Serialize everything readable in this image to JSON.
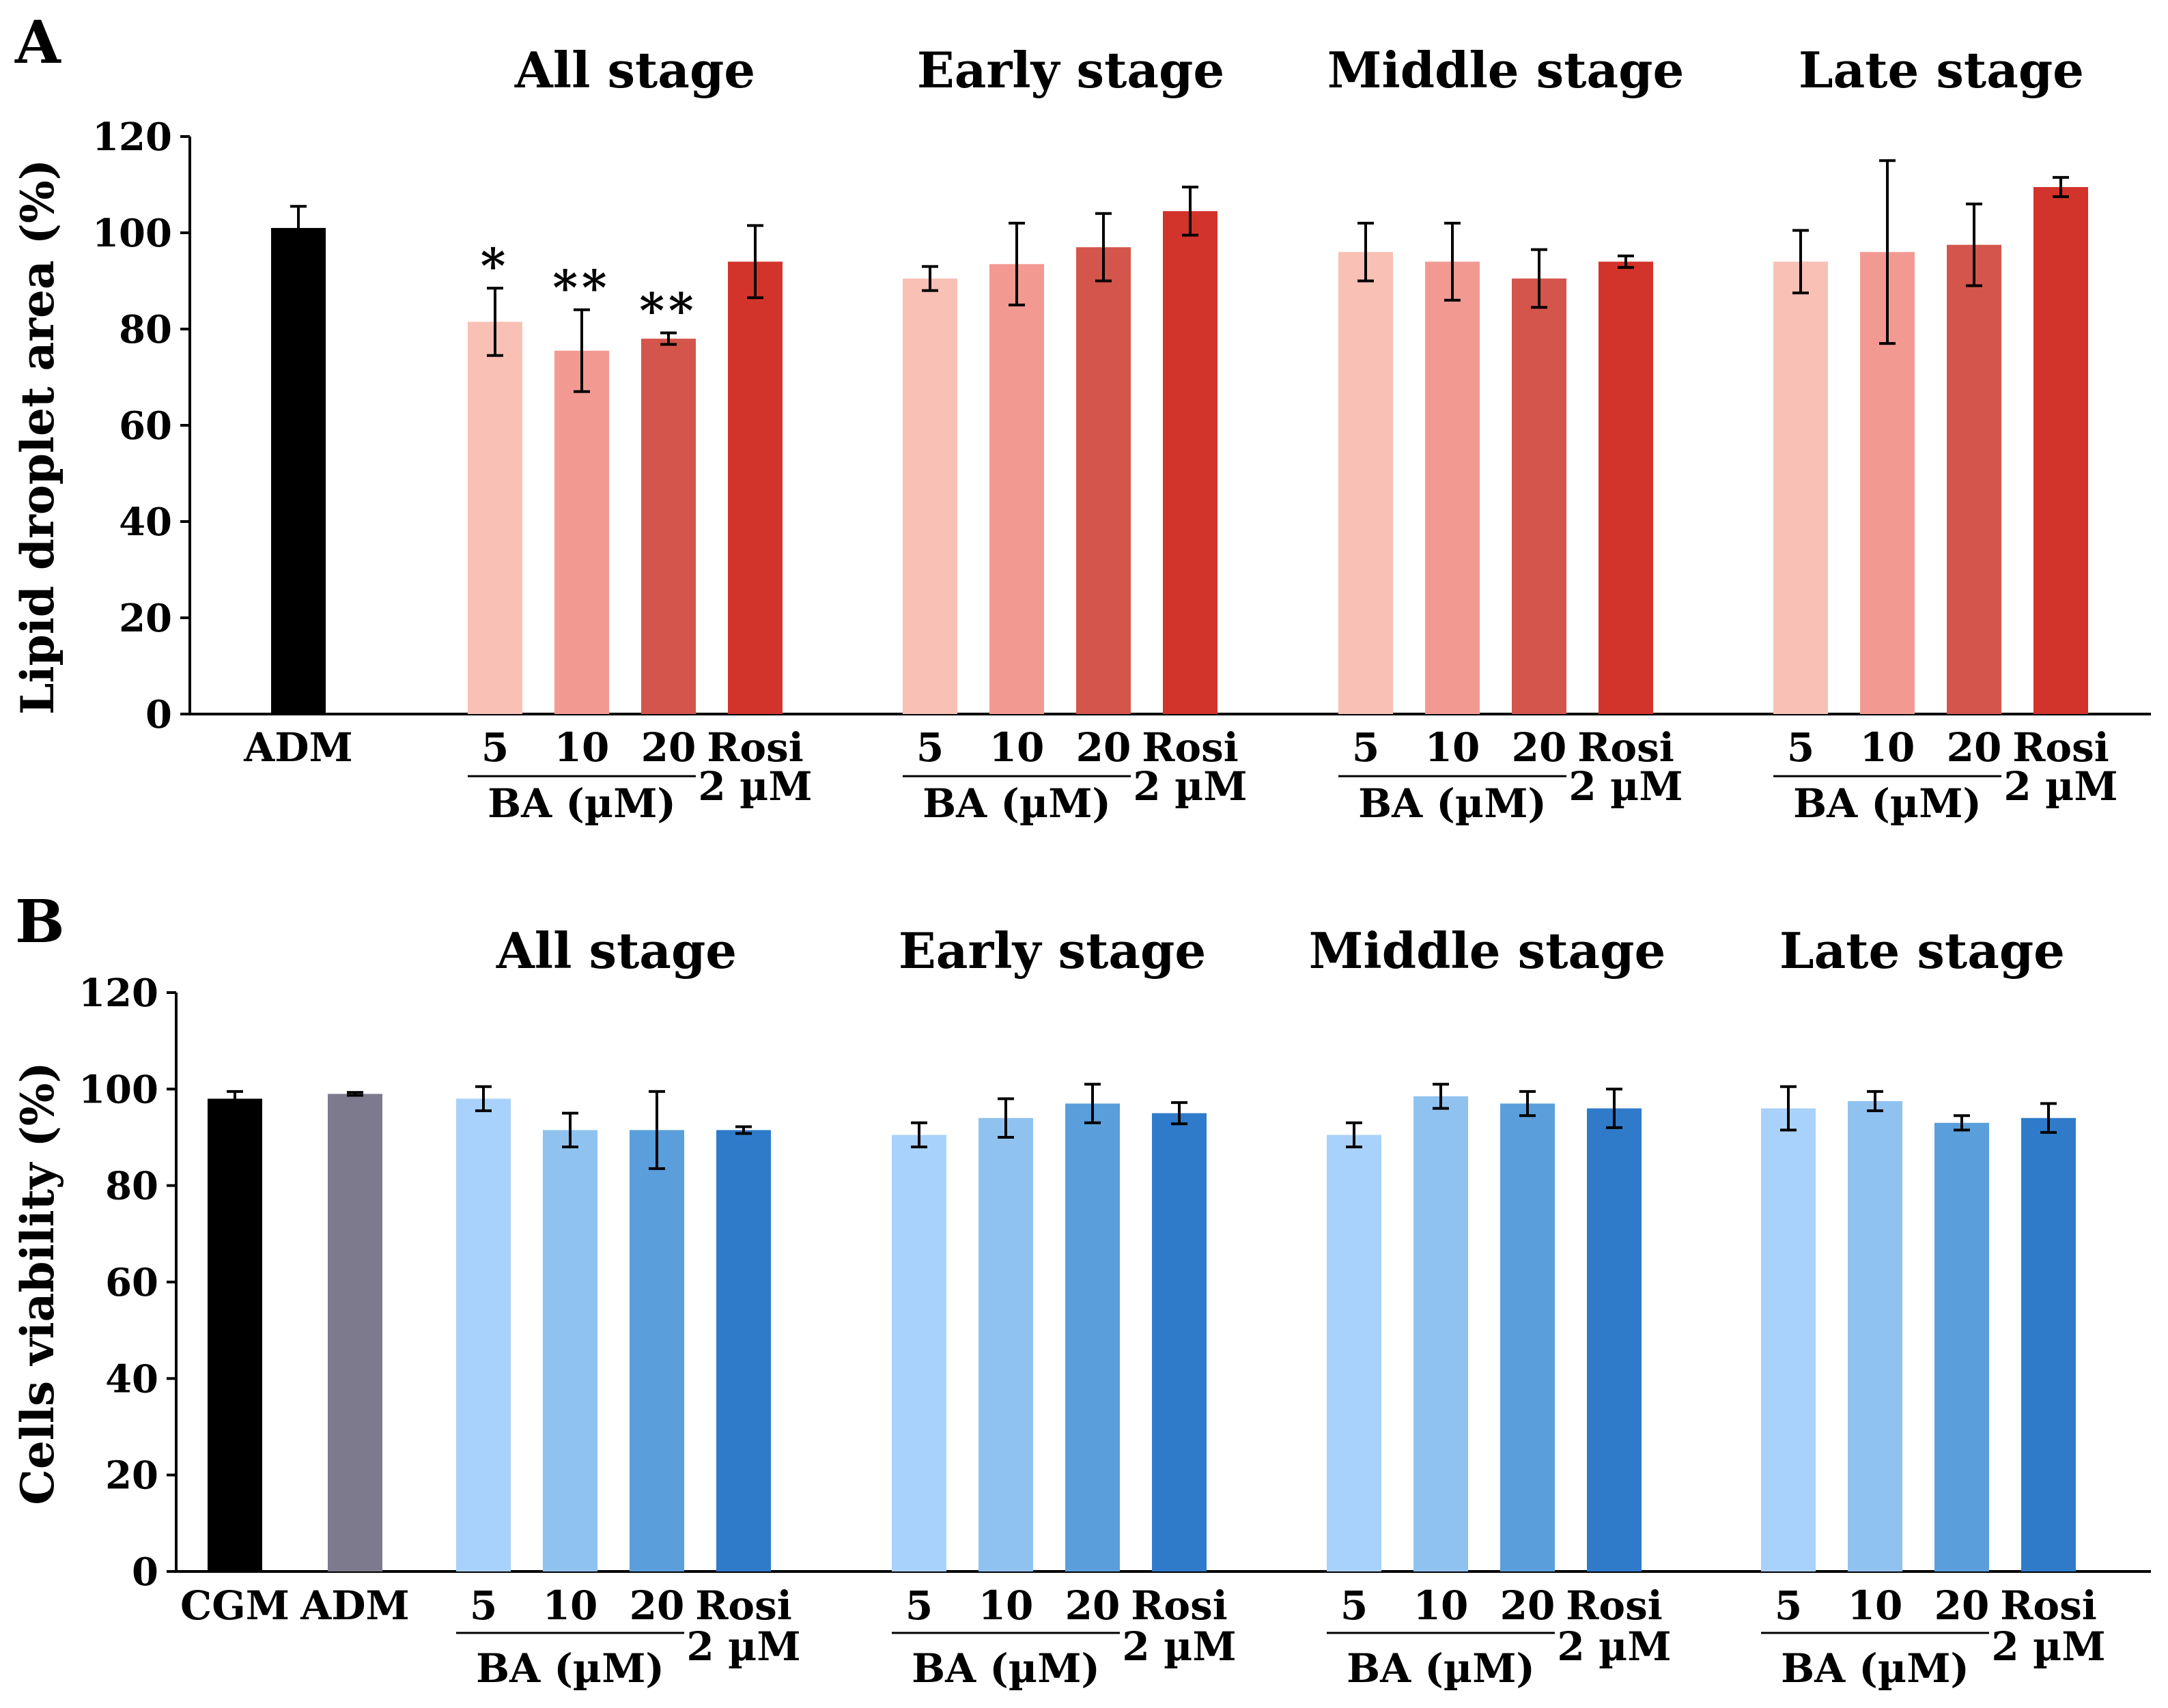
{
  "colors": {
    "red_5": "#f9c0b5",
    "red_10": "#f29a92",
    "red_20": "#d4554b",
    "red_rosi": "#d2332b",
    "blue_5": "#a8d2fb",
    "blue_10": "#90c2f0",
    "blue_20": "#5a9fdb",
    "blue_rosi": "#2f7bca",
    "black": "#000000",
    "gray": "#7d7a8e"
  },
  "stage_labels": [
    "All stage",
    "Early stage",
    "Middle stage",
    "Late stage"
  ],
  "dose_labels": [
    "5",
    "10",
    "20"
  ],
  "rosi_label": [
    "Rosi",
    "2 µM"
  ],
  "group_caption": "BA (µM)",
  "chart_data": [
    {
      "panel": "A",
      "type": "bar",
      "ylabel": "Lipid droplet area (%)",
      "ylim": [
        0,
        120
      ],
      "yticks": [
        0,
        20,
        40,
        60,
        80,
        100,
        120
      ],
      "controls": [
        {
          "label": "ADM",
          "value": 101,
          "error": 4.5,
          "color": "#000000"
        }
      ],
      "groups": [
        {
          "stage": "All stage",
          "values": [
            81.5,
            75.5,
            78,
            94
          ],
          "errors": [
            7,
            8.5,
            1.2,
            7.5
          ],
          "significance": [
            "*",
            "**",
            "**",
            ""
          ]
        },
        {
          "stage": "Early stage",
          "values": [
            90.5,
            93.5,
            97,
            104.5
          ],
          "errors": [
            2.5,
            8.5,
            7,
            5
          ],
          "significance": [
            "",
            "",
            "",
            ""
          ]
        },
        {
          "stage": "Middle stage",
          "values": [
            96,
            94,
            90.5,
            94
          ],
          "errors": [
            6,
            8,
            6,
            1.2
          ],
          "significance": [
            "",
            "",
            "",
            ""
          ]
        },
        {
          "stage": "Late stage",
          "values": [
            94,
            96,
            97.5,
            109.5
          ],
          "errors": [
            6.5,
            19,
            8.5,
            2
          ],
          "significance": [
            "",
            "",
            "",
            ""
          ]
        }
      ],
      "bar_colors": [
        "#f9c0b5",
        "#f29a92",
        "#d4554b",
        "#d2332b"
      ]
    },
    {
      "panel": "B",
      "type": "bar",
      "ylabel": "Cells viability (%)",
      "ylim": [
        0,
        120
      ],
      "yticks": [
        0,
        20,
        40,
        60,
        80,
        100,
        120
      ],
      "controls": [
        {
          "label": "CGM",
          "value": 98,
          "error": 1.5,
          "color": "#000000"
        },
        {
          "label": "ADM",
          "value": 99,
          "error": 0.3,
          "color": "#7d7a8e"
        }
      ],
      "groups": [
        {
          "stage": "All stage",
          "values": [
            98,
            91.5,
            91.5,
            91.5
          ],
          "errors": [
            2.5,
            3.5,
            8,
            0.7
          ],
          "significance": [
            "",
            "",
            "",
            ""
          ]
        },
        {
          "stage": "Early stage",
          "values": [
            90.5,
            94,
            97,
            95
          ],
          "errors": [
            2.5,
            4,
            4,
            2.2
          ],
          "significance": [
            "",
            "",
            "",
            ""
          ]
        },
        {
          "stage": "Middle stage",
          "values": [
            90.5,
            98.5,
            97,
            96
          ],
          "errors": [
            2.5,
            2.5,
            2.5,
            4
          ],
          "significance": [
            "",
            "",
            "",
            ""
          ]
        },
        {
          "stage": "Late stage",
          "values": [
            96,
            97.5,
            93,
            94
          ],
          "errors": [
            4.5,
            2,
            1.5,
            3
          ],
          "significance": [
            "",
            "",
            "",
            ""
          ]
        }
      ],
      "bar_colors": [
        "#a8d2fb",
        "#90c2f0",
        "#5a9fdb",
        "#2f7bca"
      ]
    }
  ],
  "panel_letters": [
    "A",
    "B"
  ]
}
